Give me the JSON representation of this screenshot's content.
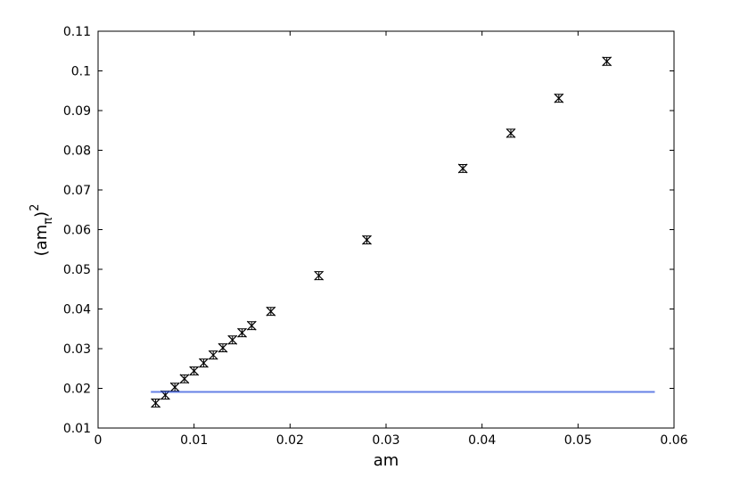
{
  "chart_data": {
    "type": "scatter",
    "xlabel": "am",
    "ylabel": {
      "base": "(am",
      "sub": "π",
      "close": ")",
      "sup": "2"
    },
    "xlim": [
      0,
      0.06
    ],
    "ylim": [
      0.01,
      0.11
    ],
    "xticks": [
      0,
      0.01,
      0.02,
      0.03,
      0.04,
      0.05,
      0.06
    ],
    "yticks": [
      0.01,
      0.02,
      0.03,
      0.04,
      0.05,
      0.06,
      0.07,
      0.08,
      0.09,
      0.1,
      0.11
    ],
    "series": [
      {
        "color": "#000000",
        "marker": "x",
        "x": [
          0.006,
          0.007,
          0.008,
          0.009,
          0.01,
          0.011,
          0.012,
          0.013,
          0.014,
          0.015,
          0.016,
          0.018,
          0.023,
          0.028,
          0.038,
          0.043,
          0.048,
          0.053
        ],
        "values": [
          0.0163,
          0.0183,
          0.0203,
          0.0224,
          0.0244,
          0.0264,
          0.0284,
          0.0302,
          0.0322,
          0.034,
          0.0358,
          0.0394,
          0.0484,
          0.0574,
          0.0754,
          0.0843,
          0.0931,
          0.1024
        ],
        "errors": [
          0.001,
          0.001,
          0.001,
          0.001,
          0.001,
          0.001,
          0.001,
          0.001,
          0.001,
          0.001,
          0.001,
          0.001,
          0.001,
          0.001,
          0.001,
          0.001,
          0.001,
          0.001
        ]
      },
      {
        "color": "#3355dd",
        "marker": "line",
        "x": [
          0.0055,
          0.058
        ],
        "values": [
          0.0191,
          0.0191
        ]
      }
    ]
  }
}
